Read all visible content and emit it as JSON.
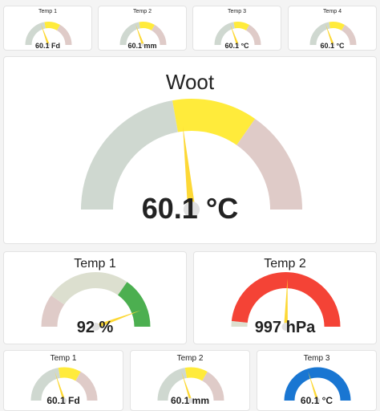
{
  "colors": {
    "grey": "#cfd8d0",
    "yellow": "#ffeb3b",
    "pink": "#dfcbc8",
    "green": "#4caf50",
    "beige": "#dcdfcf",
    "red": "#f44336",
    "blue": "#1976d2",
    "needle": "#fdd835"
  },
  "gauges": [
    {
      "id": "g1",
      "title": "Temp 1",
      "value_label": "60.1 Fd",
      "needle_angle": 70,
      "segments": [
        {
          "from": 0,
          "to": 80,
          "color": "grey"
        },
        {
          "from": 80,
          "to": 120,
          "color": "yellow"
        },
        {
          "from": 120,
          "to": 180,
          "color": "pink"
        }
      ]
    },
    {
      "id": "g2",
      "title": "Temp 2",
      "value_label": "60.1 mm",
      "needle_angle": 70,
      "segments": [
        {
          "from": 0,
          "to": 80,
          "color": "grey"
        },
        {
          "from": 80,
          "to": 120,
          "color": "yellow"
        },
        {
          "from": 120,
          "to": 180,
          "color": "pink"
        }
      ]
    },
    {
      "id": "g3",
      "title": "Temp 3",
      "value_label": "60.1 °C",
      "needle_angle": 70,
      "segments": [
        {
          "from": 0,
          "to": 80,
          "color": "grey"
        },
        {
          "from": 80,
          "to": 120,
          "color": "yellow"
        },
        {
          "from": 120,
          "to": 180,
          "color": "pink"
        }
      ]
    },
    {
      "id": "g4",
      "title": "Temp 4",
      "value_label": "60.1 °C",
      "needle_angle": 70,
      "segments": [
        {
          "from": 0,
          "to": 80,
          "color": "grey"
        },
        {
          "from": 80,
          "to": 120,
          "color": "yellow"
        },
        {
          "from": 120,
          "to": 180,
          "color": "pink"
        }
      ]
    },
    {
      "id": "main",
      "title": "Woot",
      "value_label": "60.1 °C",
      "needle_angle": 84,
      "segments": [
        {
          "from": 0,
          "to": 80,
          "color": "grey"
        },
        {
          "from": 80,
          "to": 125,
          "color": "yellow"
        },
        {
          "from": 125,
          "to": 180,
          "color": "pink"
        }
      ]
    },
    {
      "id": "m1",
      "title": "Temp 1",
      "value_label": "92 %",
      "needle_angle": 160,
      "segments": [
        {
          "from": 0,
          "to": 35,
          "color": "pink"
        },
        {
          "from": 35,
          "to": 125,
          "color": "beige"
        },
        {
          "from": 125,
          "to": 180,
          "color": "green"
        }
      ]
    },
    {
      "id": "m2",
      "title": "Temp 2",
      "value_label": "997 hPa",
      "needle_angle": 92,
      "segments": [
        {
          "from": 0,
          "to": 6,
          "color": "beige"
        },
        {
          "from": 6,
          "to": 180,
          "color": "red"
        }
      ]
    },
    {
      "id": "b1",
      "title": "Temp 1",
      "value_label": "60.1 Fd",
      "needle_angle": 72,
      "segments": [
        {
          "from": 0,
          "to": 80,
          "color": "grey"
        },
        {
          "from": 80,
          "to": 120,
          "color": "yellow"
        },
        {
          "from": 120,
          "to": 180,
          "color": "pink"
        }
      ]
    },
    {
      "id": "b2",
      "title": "Temp 2",
      "value_label": "60.1 mm",
      "needle_angle": 72,
      "segments": [
        {
          "from": 0,
          "to": 80,
          "color": "grey"
        },
        {
          "from": 80,
          "to": 120,
          "color": "yellow"
        },
        {
          "from": 120,
          "to": 180,
          "color": "pink"
        }
      ]
    },
    {
      "id": "b3",
      "title": "Temp 3",
      "value_label": "60.1 °C",
      "needle_angle": 72,
      "segments": [
        {
          "from": 0,
          "to": 180,
          "color": "blue"
        }
      ]
    }
  ]
}
